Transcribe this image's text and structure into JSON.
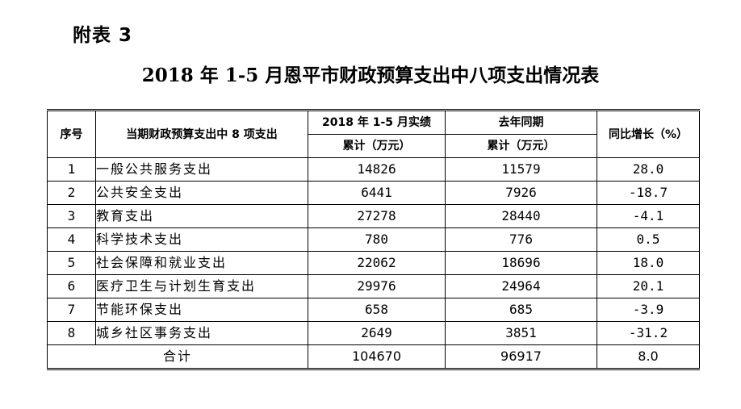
{
  "appendix_label": "附表 3",
  "title": "2018 年 1-5 月恩平市财政预算支出中八项支出情况表",
  "table": {
    "headers": {
      "seq": "序号",
      "item": "当期财政预算支出中 8 项支出",
      "current_group": "2018 年 1-5 月实绩",
      "current_sub": "累计（万元）",
      "prior_group": "去年同期",
      "prior_sub": "累计（万元）",
      "growth": "同比增长（%）"
    },
    "rows": [
      {
        "seq": "1",
        "item": "一般公共服务支出",
        "current": "14826",
        "prior": "11579",
        "growth": "28.0"
      },
      {
        "seq": "2",
        "item": "公共安全支出",
        "current": "6441",
        "prior": "7926",
        "growth": "-18.7"
      },
      {
        "seq": "3",
        "item": "教育支出",
        "current": "27278",
        "prior": "28440",
        "growth": "-4.1"
      },
      {
        "seq": "4",
        "item": "科学技术支出",
        "current": "780",
        "prior": "776",
        "growth": "0.5"
      },
      {
        "seq": "5",
        "item": "社会保障和就业支出",
        "current": "22062",
        "prior": "18696",
        "growth": "18.0"
      },
      {
        "seq": "6",
        "item": "医疗卫生与计划生育支出",
        "current": "29976",
        "prior": "24964",
        "growth": "20.1"
      },
      {
        "seq": "7",
        "item": "节能环保支出",
        "current": "658",
        "prior": "685",
        "growth": "-3.9"
      },
      {
        "seq": "8",
        "item": "城乡社区事务支出",
        "current": "2649",
        "prior": "3851",
        "growth": "-31.2"
      }
    ],
    "total": {
      "label": "合计",
      "current": "104670",
      "prior": "96917",
      "growth": "8.0"
    }
  }
}
